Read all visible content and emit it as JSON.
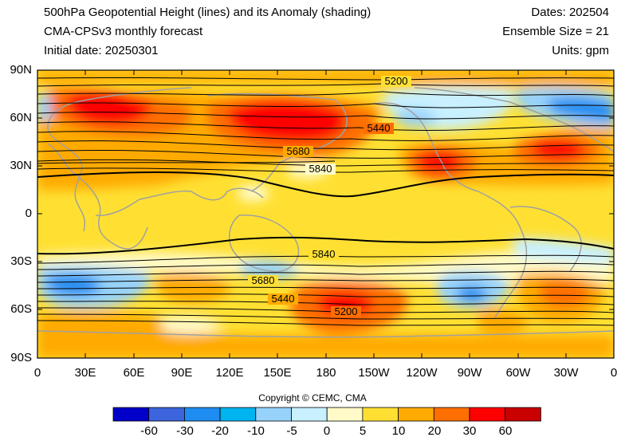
{
  "header": {
    "title": "500hPa Geopotential Height (lines) and its Anomaly (shading)",
    "model": "CMA-CPSv3 monthly forecast",
    "init": "Initial date: 20250301",
    "dates": "Dates: 202504",
    "ensemble": "Ensemble Size = 21",
    "units": "Units: gpm"
  },
  "axes": {
    "lat_labels": [
      "90N",
      "60N",
      "30N",
      "0",
      "30S",
      "60S",
      "90S"
    ],
    "lon_labels": [
      "0",
      "30E",
      "60E",
      "90E",
      "120E",
      "150E",
      "180",
      "150W",
      "120W",
      "90W",
      "60W",
      "30W",
      "0"
    ]
  },
  "contour_labels": [
    "5200",
    "5440",
    "5680",
    "5840",
    "5840",
    "5680",
    "5440",
    "5200"
  ],
  "copyright": "Copyright © CEMC, CMA",
  "colorbar": {
    "colors": [
      "#0000c8",
      "#3c64dc",
      "#1e8cf0",
      "#00b4f0",
      "#96d2fa",
      "#c8f0ff",
      "#fffac8",
      "#ffe032",
      "#ffaa00",
      "#ff6e00",
      "#ff0000",
      "#c80000"
    ],
    "labels": [
      "-60",
      "-30",
      "-20",
      "-10",
      "-5",
      "0",
      "5",
      "10",
      "20",
      "30",
      "60"
    ]
  },
  "legend_colors": {
    "background_anomaly": "#ffe032",
    "coast": "#a0a0a0"
  }
}
